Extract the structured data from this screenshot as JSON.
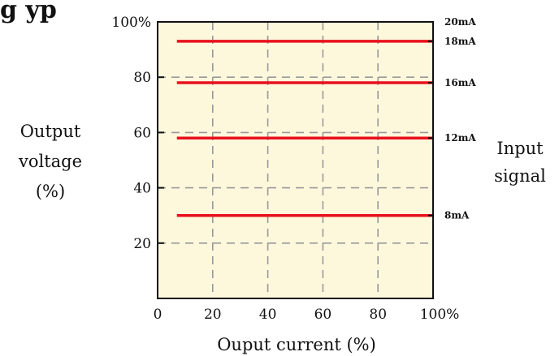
{
  "chart_data": {
    "type": "line",
    "title_fragment": "g yp",
    "xlabel": "Ouput current (%)",
    "ylabel_lines": [
      "Output",
      "voltage",
      "(%)"
    ],
    "right_label_lines": [
      "Input",
      "signal"
    ],
    "x_ticks": [
      "0",
      "20",
      "40",
      "60",
      "80",
      "100%"
    ],
    "y_ticks": [
      "100%",
      "80",
      "60",
      "40",
      "20"
    ],
    "xlim": [
      0,
      100
    ],
    "ylim": [
      0,
      100
    ],
    "right_ticks": [
      {
        "label": "20mA",
        "value": 100
      },
      {
        "label": "18mA",
        "value": 93
      },
      {
        "label": "16mA",
        "value": 78
      },
      {
        "label": "12mA",
        "value": 58
      },
      {
        "label": "8mA",
        "value": 30
      }
    ],
    "series": [
      {
        "x": [
          7,
          100
        ],
        "y": [
          93,
          93
        ]
      },
      {
        "x": [
          7,
          100
        ],
        "y": [
          78,
          78
        ]
      },
      {
        "x": [
          7,
          100
        ],
        "y": [
          58,
          58
        ]
      },
      {
        "x": [
          7,
          100
        ],
        "y": [
          30,
          30
        ]
      }
    ],
    "grid": true,
    "colors": {
      "background": "#fdf8dc",
      "line": "#e8101c",
      "grid": "#999999",
      "axis": "#111111"
    }
  }
}
